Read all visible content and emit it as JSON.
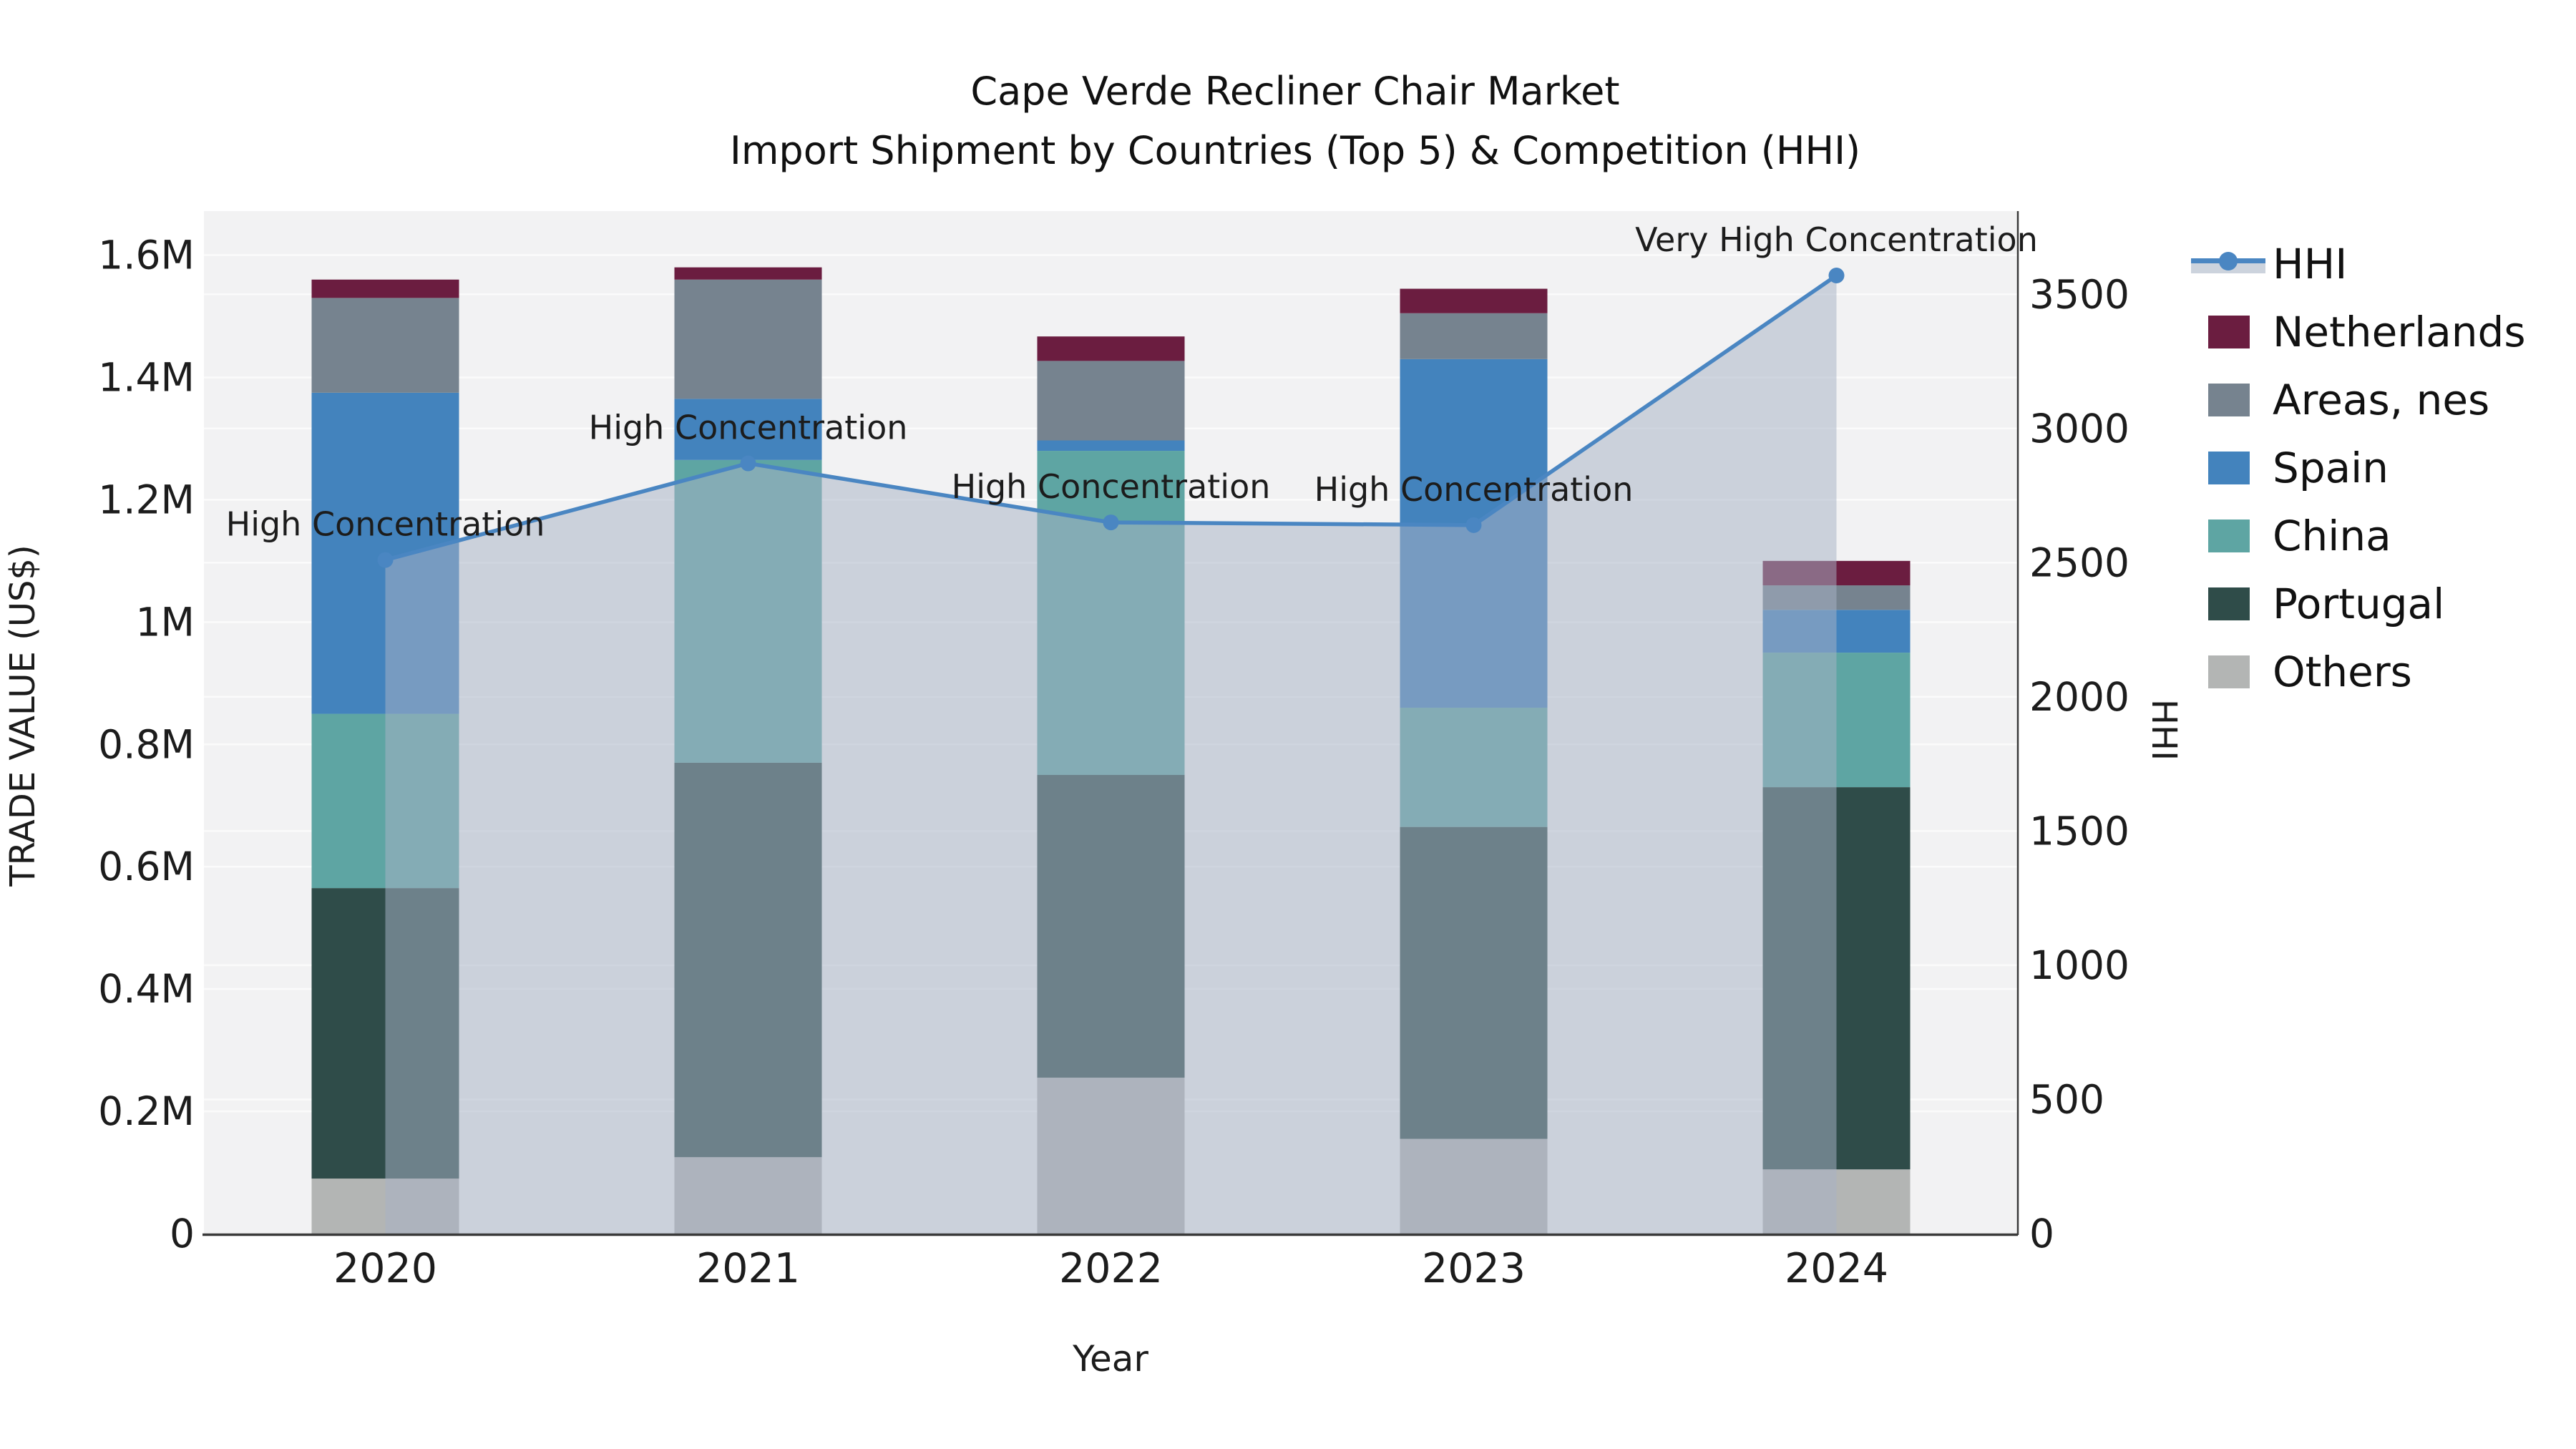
{
  "title": {
    "line1": "Cape Verde Recliner Chair Market",
    "line2": "Import Shipment by Countries (Top 5) & Competition (HHI)"
  },
  "axes": {
    "x_label": "Year",
    "y_left_label": "TRADE VALUE (US$)",
    "y_right_label": "HHI"
  },
  "colors": {
    "plot_bg": "#f2f2f3",
    "grid": "#fbfbfb",
    "spine": "#3a3a3a",
    "text": "#1c1c1c",
    "hhi_line": "#4a86c2",
    "hhi_fill": "rgba(167,178,197,0.52)",
    "legend_band": "#ccd3dd"
  },
  "legend": {
    "items": [
      {
        "label": "HHI",
        "type": "line",
        "color": "#4a86c2"
      },
      {
        "label": "Netherlands",
        "type": "patch",
        "color": "#6b1d40"
      },
      {
        "label": "Areas, nes",
        "type": "patch",
        "color": "#76838f"
      },
      {
        "label": "Spain",
        "type": "patch",
        "color": "#4383bd"
      },
      {
        "label": "China",
        "type": "patch",
        "color": "#5ea5a3"
      },
      {
        "label": "Portugal",
        "type": "patch",
        "color": "#2f4c49"
      },
      {
        "label": "Others",
        "type": "patch",
        "color": "#b3b5b4"
      }
    ]
  },
  "chart_data": {
    "type": "bar",
    "subtype": "stacked-bars-with-line",
    "title": "Cape Verde Recliner Chair Market — Import Shipment by Countries (Top 5) & Competition (HHI)",
    "xlabel": "Year",
    "ylabel_left": "TRADE VALUE (US$)",
    "ylabel_right": "HHI",
    "categories": [
      "2020",
      "2021",
      "2022",
      "2023",
      "2024"
    ],
    "series": [
      {
        "name": "Others",
        "color": "#b3b5b4",
        "values": [
          90000,
          125000,
          255000,
          155000,
          105000
        ]
      },
      {
        "name": "Portugal",
        "color": "#2f4c49",
        "values": [
          475000,
          645000,
          495000,
          510000,
          625000
        ]
      },
      {
        "name": "China",
        "color": "#5ea5a3",
        "values": [
          285000,
          495000,
          530000,
          195000,
          220000
        ]
      },
      {
        "name": "Spain",
        "color": "#4383bd",
        "values": [
          525000,
          100000,
          17000,
          570000,
          70000
        ]
      },
      {
        "name": "Areas, nes",
        "color": "#76838f",
        "values": [
          155000,
          195000,
          130000,
          75000,
          40000
        ]
      },
      {
        "name": "Netherlands",
        "color": "#6b1d40",
        "values": [
          30000,
          20000,
          40000,
          40000,
          40000
        ]
      }
    ],
    "line": {
      "name": "HHI",
      "color": "#4a86c2",
      "values": [
        2510,
        2870,
        2650,
        2640,
        3570
      ]
    },
    "annotations": [
      {
        "index": 0,
        "text": "High Concentration"
      },
      {
        "index": 1,
        "text": "High Concentration"
      },
      {
        "index": 2,
        "text": "High Concentration"
      },
      {
        "index": 3,
        "text": "High Concentration"
      },
      {
        "index": 4,
        "text": "Very High Concentration"
      }
    ],
    "ylim_left": [
      0,
      1672000
    ],
    "ylim_right": [
      0,
      3810
    ],
    "y_left_ticks": [
      {
        "v": 0,
        "label": "0"
      },
      {
        "v": 200000,
        "label": "0.2M"
      },
      {
        "v": 400000,
        "label": "0.4M"
      },
      {
        "v": 600000,
        "label": "0.6M"
      },
      {
        "v": 800000,
        "label": "0.8M"
      },
      {
        "v": 1000000,
        "label": "1M"
      },
      {
        "v": 1200000,
        "label": "1.2M"
      },
      {
        "v": 1400000,
        "label": "1.4M"
      },
      {
        "v": 1600000,
        "label": "1.6M"
      }
    ],
    "y_right_ticks": [
      {
        "v": 0,
        "label": "0"
      },
      {
        "v": 500,
        "label": "500"
      },
      {
        "v": 1000,
        "label": "1000"
      },
      {
        "v": 1500,
        "label": "1500"
      },
      {
        "v": 2000,
        "label": "2000"
      },
      {
        "v": 2500,
        "label": "2500"
      },
      {
        "v": 3000,
        "label": "3000"
      },
      {
        "v": 3500,
        "label": "3500"
      }
    ],
    "grid": true,
    "legend_position": "right"
  }
}
